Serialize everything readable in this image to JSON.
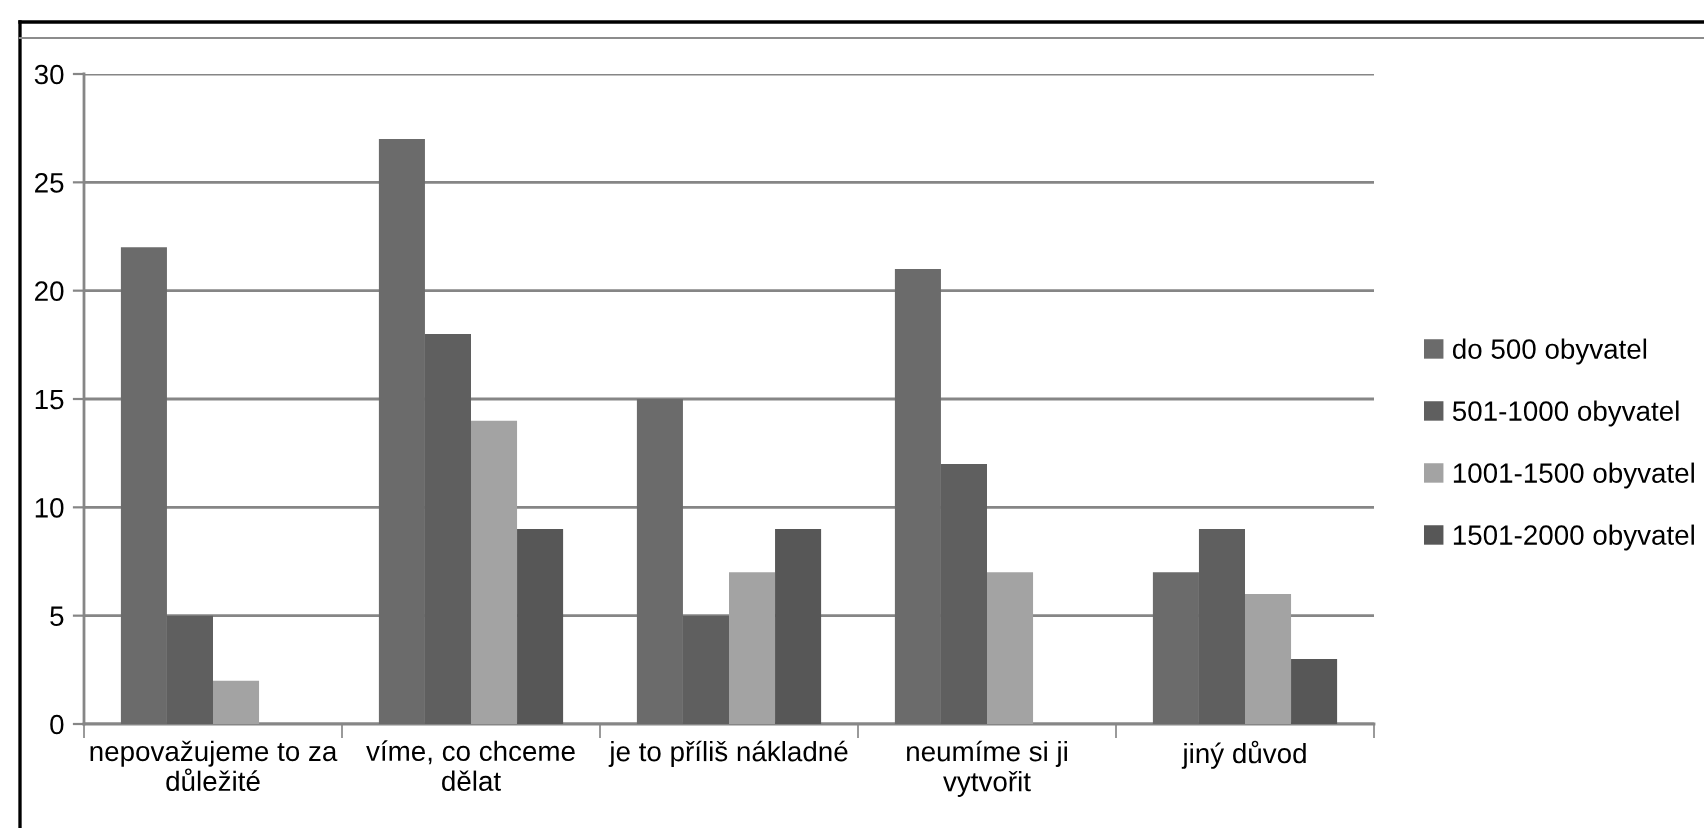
{
  "chart_data": {
    "type": "bar",
    "categories": [
      "nepovažujeme to za důležité",
      "víme, co chceme dělat",
      "je to příliš nákladné",
      "neumíme si ji vytvořit",
      "jiný důvod"
    ],
    "series": [
      {
        "name": "do 500 obyvatel",
        "color": "#6b6b6b",
        "values": [
          22,
          27,
          15,
          21,
          7
        ]
      },
      {
        "name": "501-1000 obyvatel",
        "color": "#5f5f5f",
        "values": [
          5,
          18,
          5,
          12,
          9
        ]
      },
      {
        "name": "1001-1500 obyvatel",
        "color": "#a3a3a3",
        "values": [
          2,
          14,
          7,
          7,
          6
        ]
      },
      {
        "name": "1501-2000 obyvatel",
        "color": "#575757",
        "values": [
          0,
          9,
          9,
          0,
          3
        ]
      }
    ],
    "ylim": [
      0,
      30
    ],
    "yticks": [
      0,
      5,
      10,
      15,
      20,
      25,
      30
    ],
    "grid": "y",
    "legend": "right"
  }
}
